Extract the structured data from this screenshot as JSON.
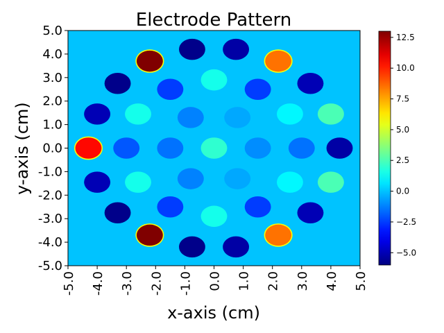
{
  "chart_data": {
    "type": "heatmap",
    "title": "Electrode Pattern",
    "xlabel": "x-axis (cm)",
    "ylabel": "y-axis (cm)",
    "xlim": [
      -5,
      5
    ],
    "ylim": [
      -5,
      5
    ],
    "background_value": 0.0,
    "colormap": "jet",
    "colorbar": {
      "vmin": -6.0,
      "vmax": 13.0,
      "ticks": [
        -5.0,
        -2.5,
        0.0,
        2.5,
        5.0,
        7.5,
        10.0,
        12.5
      ]
    },
    "x_ticks": [
      "-5.0",
      "-4.0",
      "-3.0",
      "-2.0",
      "-1.0",
      "0.0",
      "1.0",
      "2.0",
      "3.0",
      "4.0",
      "5.0"
    ],
    "y_ticks": [
      "-5.0",
      "-4.0",
      "-3.0",
      "-2.0",
      "-1.0",
      "0.0",
      "1.0",
      "2.0",
      "3.0",
      "4.0",
      "5.0"
    ],
    "colorbar_tick_labels": [
      "−5.0",
      "−2.5",
      "0.0",
      "2.5",
      "5.0",
      "7.5",
      "10.0",
      "12.5"
    ],
    "electrode_radius": 0.45,
    "electrodes": [
      {
        "x": -4.3,
        "y": 0.0,
        "value": 10.5
      },
      {
        "x": -4.0,
        "y": 1.45,
        "value": -5.0
      },
      {
        "x": -4.0,
        "y": -1.45,
        "value": -5.0
      },
      {
        "x": -3.3,
        "y": 2.75,
        "value": -5.8
      },
      {
        "x": -3.3,
        "y": -2.75,
        "value": -5.8
      },
      {
        "x": -2.2,
        "y": 3.7,
        "value": 13.0
      },
      {
        "x": -2.2,
        "y": -3.7,
        "value": 13.0
      },
      {
        "x": -0.75,
        "y": 4.2,
        "value": -5.8
      },
      {
        "x": -0.75,
        "y": -4.2,
        "value": -5.8
      },
      {
        "x": 0.75,
        "y": 4.2,
        "value": -5.3
      },
      {
        "x": 0.75,
        "y": -4.2,
        "value": -5.3
      },
      {
        "x": 2.2,
        "y": 3.7,
        "value": 8.5
      },
      {
        "x": 2.2,
        "y": -3.7,
        "value": 8.5
      },
      {
        "x": 3.3,
        "y": 2.75,
        "value": -5.0
      },
      {
        "x": 3.3,
        "y": -2.75,
        "value": -5.0
      },
      {
        "x": 4.0,
        "y": 1.45,
        "value": 2.5
      },
      {
        "x": 4.0,
        "y": -1.45,
        "value": 2.5
      },
      {
        "x": 4.3,
        "y": 0.0,
        "value": -5.3
      },
      {
        "x": -2.6,
        "y": 1.45,
        "value": 1.5
      },
      {
        "x": -2.6,
        "y": -1.45,
        "value": 1.5
      },
      {
        "x": -1.5,
        "y": 2.5,
        "value": -2.5
      },
      {
        "x": -1.5,
        "y": -2.5,
        "value": -2.5
      },
      {
        "x": 0.0,
        "y": 2.9,
        "value": 1.5
      },
      {
        "x": 0.0,
        "y": -2.9,
        "value": 1.5
      },
      {
        "x": 1.5,
        "y": 2.5,
        "value": -2.5
      },
      {
        "x": 1.5,
        "y": -2.5,
        "value": -2.5
      },
      {
        "x": 2.6,
        "y": 1.45,
        "value": 1.0
      },
      {
        "x": 2.6,
        "y": -1.45,
        "value": 1.0
      },
      {
        "x": -3.0,
        "y": 0.0,
        "value": -2.0
      },
      {
        "x": 3.0,
        "y": 0.0,
        "value": -1.5
      },
      {
        "x": -0.8,
        "y": 1.3,
        "value": -1.2
      },
      {
        "x": -0.8,
        "y": -1.3,
        "value": -1.2
      },
      {
        "x": 0.8,
        "y": 1.3,
        "value": -0.5
      },
      {
        "x": 0.8,
        "y": -1.3,
        "value": -0.5
      },
      {
        "x": -1.5,
        "y": 0.0,
        "value": -1.5
      },
      {
        "x": 1.5,
        "y": 0.0,
        "value": -1.0
      },
      {
        "x": 0.0,
        "y": 0.0,
        "value": 2.0
      }
    ]
  }
}
